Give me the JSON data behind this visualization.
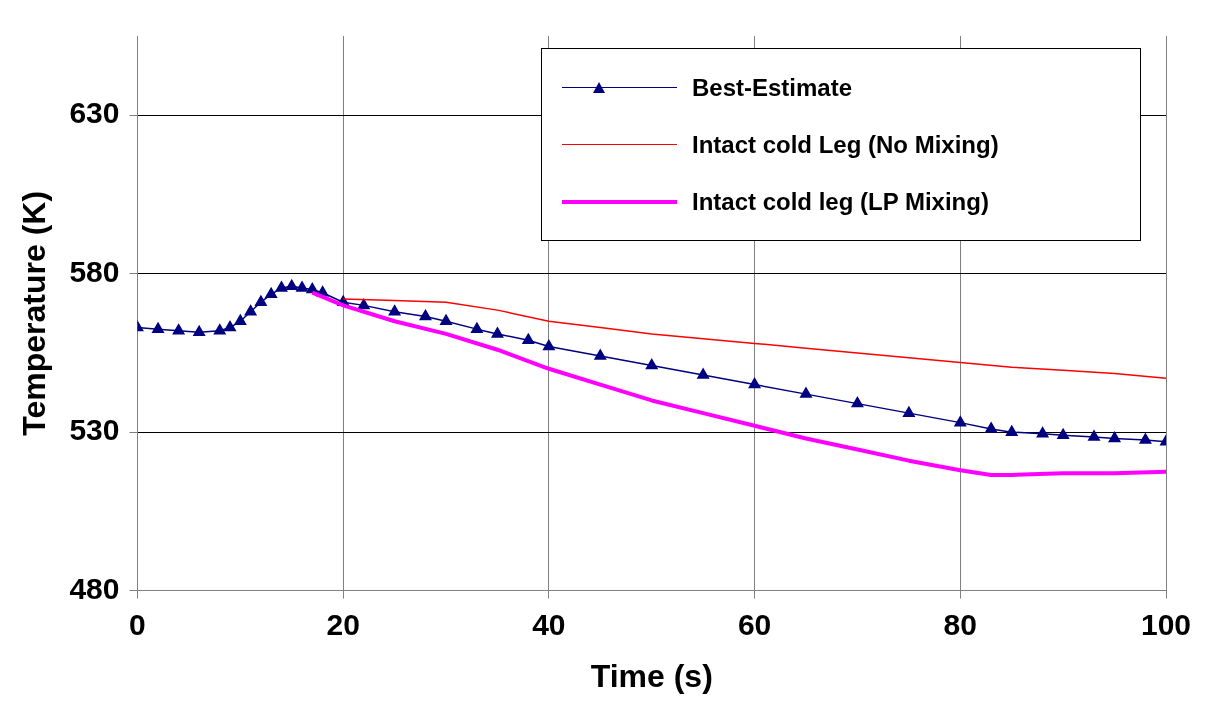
{
  "chart_data": {
    "type": "line",
    "xlabel": "Time (s)",
    "ylabel": "Temperature (K)",
    "xlim": [
      0,
      100
    ],
    "xticks": [
      0,
      20,
      40,
      60,
      80,
      100
    ],
    "ylim": [
      480,
      655
    ],
    "yticks": [
      480,
      530,
      580,
      630
    ],
    "grid": true,
    "legend": "top right",
    "series": [
      {
        "name": "Best-Estimate",
        "color": "#000080",
        "marker": "triangle",
        "x": [
          0,
          2,
          4,
          6,
          8,
          9,
          10,
          11,
          12,
          13,
          14,
          15,
          16,
          17,
          18,
          20,
          22,
          25,
          28,
          30,
          33,
          35,
          38,
          40,
          45,
          50,
          55,
          60,
          65,
          70,
          75,
          80,
          83,
          85,
          88,
          90,
          93,
          95,
          98,
          100
        ],
        "values": [
          563,
          562.5,
          562,
          561.5,
          562,
          563,
          565,
          568,
          571,
          573.5,
          575.5,
          576,
          575.5,
          575,
          574,
          571,
          570,
          568,
          566.5,
          565,
          562.5,
          561,
          559,
          557,
          554,
          551,
          548,
          545,
          542,
          539,
          536,
          533,
          531,
          530,
          529.5,
          529,
          528.5,
          528,
          527.5,
          527
        ]
      },
      {
        "name": "Intact cold Leg (No Mixing)",
        "color": "#ff0000",
        "marker": "none",
        "x": [
          20,
          25,
          30,
          35,
          40,
          45,
          50,
          55,
          60,
          65,
          70,
          75,
          80,
          85,
          90,
          95,
          100
        ],
        "values": [
          572,
          571.5,
          571,
          568.5,
          565,
          563,
          561,
          559.5,
          558,
          556.5,
          555,
          553.5,
          552,
          550.5,
          549.5,
          548.5,
          547
        ]
      },
      {
        "name": "Intact cold leg (LP Mixing)",
        "color": "#ff00ff",
        "marker": "none",
        "x": [
          17,
          20,
          25,
          30,
          35,
          40,
          45,
          50,
          55,
          60,
          65,
          70,
          75,
          80,
          83,
          85,
          90,
          95,
          100
        ],
        "values": [
          574,
          570,
          565,
          561,
          556,
          550,
          545,
          540,
          536,
          532,
          528,
          524.5,
          521,
          518,
          516.5,
          516.5,
          517,
          517,
          517.5
        ]
      }
    ]
  }
}
